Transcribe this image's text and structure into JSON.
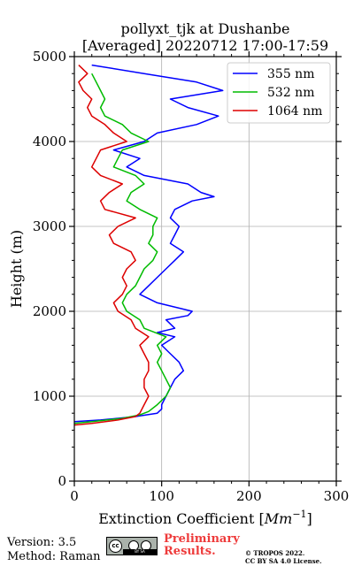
{
  "chart_data": {
    "type": "line",
    "title_line1": "pollyxt_tjk at Dushanbe",
    "title_line2": "[Averaged] 20220712 17:00-17:59",
    "xlabel": "Extinction Coefficient [Mm⁻¹]",
    "xlabel_main": "Extinction Coefficient [",
    "xlabel_unit": "Mm",
    "xlabel_exp": "−1",
    "xlabel_close": "]",
    "ylabel": "Height (m)",
    "xlim": [
      0,
      300
    ],
    "ylim": [
      0,
      5000
    ],
    "xticks": [
      "0",
      "100",
      "200",
      "300"
    ],
    "yticks": [
      "0",
      "1000",
      "2000",
      "3000",
      "4000",
      "5000"
    ],
    "grid": true,
    "legend_position": "top-right",
    "series": [
      {
        "name": "355 nm",
        "color": "#0000ff",
        "height": [
          700,
          720,
          760,
          800,
          850,
          900,
          1000,
          1100,
          1200,
          1300,
          1400,
          1500,
          1600,
          1700,
          1750,
          1800,
          1900,
          1950,
          2000,
          2100,
          2200,
          2300,
          2400,
          2500,
          2600,
          2700,
          2800,
          2900,
          3000,
          3100,
          3200,
          3300,
          3350,
          3400,
          3500,
          3600,
          3700,
          3800,
          3900,
          4000,
          4100,
          4200,
          4300,
          4400,
          4500,
          4600,
          4700,
          4800,
          4900
        ],
        "values": [
          0,
          30,
          70,
          95,
          100,
          100,
          105,
          110,
          115,
          125,
          120,
          110,
          100,
          115,
          95,
          115,
          105,
          130,
          135,
          95,
          75,
          85,
          95,
          105,
          115,
          125,
          110,
          115,
          120,
          110,
          115,
          135,
          160,
          145,
          130,
          80,
          60,
          75,
          45,
          80,
          95,
          140,
          165,
          130,
          110,
          170,
          140,
          80,
          20
        ]
      },
      {
        "name": "532 nm",
        "color": "#00bb00",
        "height": [
          680,
          700,
          740,
          780,
          820,
          900,
          1000,
          1100,
          1200,
          1300,
          1400,
          1500,
          1600,
          1700,
          1800,
          1900,
          2000,
          2100,
          2200,
          2300,
          2400,
          2500,
          2600,
          2700,
          2800,
          2900,
          3000,
          3100,
          3200,
          3300,
          3400,
          3500,
          3600,
          3700,
          3800,
          3900,
          4000,
          4100,
          4200,
          4300,
          4400,
          4500,
          4600,
          4700,
          4800
        ],
        "values": [
          0,
          20,
          55,
          75,
          85,
          95,
          105,
          110,
          105,
          100,
          95,
          100,
          95,
          105,
          80,
          75,
          60,
          55,
          60,
          70,
          75,
          80,
          90,
          95,
          85,
          90,
          90,
          95,
          75,
          60,
          65,
          80,
          70,
          45,
          50,
          55,
          85,
          65,
          55,
          35,
          30,
          35,
          30,
          25,
          20
        ]
      },
      {
        "name": "1064 nm",
        "color": "#dd0000",
        "height": [
          660,
          680,
          720,
          760,
          800,
          900,
          1000,
          1100,
          1200,
          1300,
          1400,
          1500,
          1600,
          1700,
          1800,
          1900,
          2000,
          2100,
          2200,
          2300,
          2400,
          2500,
          2600,
          2700,
          2800,
          2900,
          3000,
          3100,
          3200,
          3300,
          3400,
          3500,
          3600,
          3700,
          3800,
          3900,
          4000,
          4100,
          4200,
          4300,
          4400,
          4500,
          4600,
          4700,
          4800,
          4900
        ],
        "values": [
          0,
          20,
          50,
          70,
          75,
          80,
          85,
          80,
          80,
          85,
          85,
          80,
          75,
          85,
          70,
          65,
          50,
          45,
          55,
          60,
          55,
          60,
          70,
          65,
          45,
          40,
          50,
          70,
          35,
          30,
          40,
          55,
          30,
          20,
          25,
          30,
          60,
          45,
          35,
          20,
          15,
          20,
          10,
          5,
          15,
          5
        ]
      }
    ]
  },
  "footer": {
    "version": "Version: 3.5",
    "method": "Method: Raman",
    "preliminary_line1": "Preliminary",
    "preliminary_line2": "Results.",
    "copyright_line1": "© TROPOS 2022.",
    "copyright_line2": "CC BY SA 4.0 License.",
    "cc_badge_text": "cc",
    "cc_badge_strip": "BY   SA"
  }
}
